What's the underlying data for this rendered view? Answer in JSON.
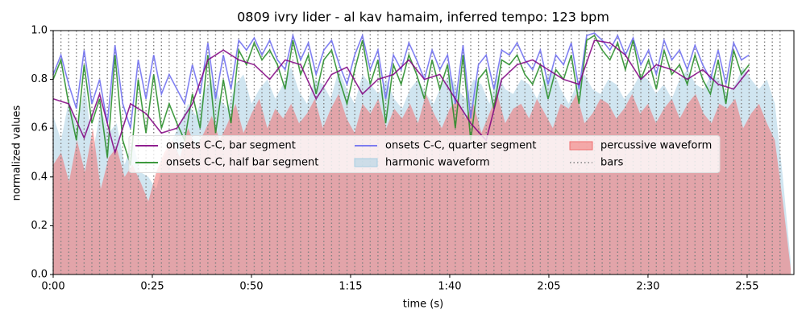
{
  "chart_data": {
    "type": "line",
    "title": "0809 ivry lider - al kav hamaim, inferred tempo: 123 bpm",
    "xlabel": "time (s)",
    "ylabel": "normalized values",
    "xlim": [
      0,
      186.8
    ],
    "ylim": [
      0,
      1
    ],
    "xticks": [
      {
        "value": 0,
        "label": "0:00"
      },
      {
        "value": 25,
        "label": "0:25"
      },
      {
        "value": 50,
        "label": "0:50"
      },
      {
        "value": 75,
        "label": "1:15"
      },
      {
        "value": 100,
        "label": "1:40"
      },
      {
        "value": 125,
        "label": "2:05"
      },
      {
        "value": 150,
        "label": "2:30"
      },
      {
        "value": 175,
        "label": "2:55"
      }
    ],
    "yticks": [
      {
        "value": 0,
        "label": "0.0"
      },
      0.2,
      0.4,
      0.6,
      0.8,
      {
        "value": 1,
        "label": "1.0"
      }
    ],
    "legend": "center",
    "legend_columns": 3,
    "series": [
      {
        "name": "onsets C-C, bar segment",
        "kind": "line",
        "color": "#800080",
        "x": [
          0,
          3.9,
          7.8,
          11.7,
          15.6,
          19.5,
          23.4,
          27.3,
          31.2,
          35.1,
          39,
          42.9,
          46.8,
          50.7,
          54.6,
          58.5,
          62.4,
          66.3,
          70.2,
          74.1,
          78,
          81.9,
          85.8,
          89.7,
          93.6,
          97.5,
          101.4,
          105.3,
          109.2,
          113.1,
          117,
          120.9,
          124.8,
          128.7,
          132.6,
          136.5,
          140.4,
          144.3,
          148.2,
          152.1,
          156,
          159.9,
          163.8,
          167.7,
          171.6,
          175.5
        ],
        "values": [
          0.72,
          0.7,
          0.56,
          0.74,
          0.5,
          0.7,
          0.66,
          0.58,
          0.6,
          0.7,
          0.88,
          0.92,
          0.88,
          0.86,
          0.8,
          0.88,
          0.86,
          0.72,
          0.82,
          0.85,
          0.74,
          0.8,
          0.82,
          0.88,
          0.8,
          0.82,
          0.72,
          0.62,
          0.55,
          0.8,
          0.86,
          0.88,
          0.84,
          0.8,
          0.78,
          0.96,
          0.95,
          0.9,
          0.8,
          0.86,
          0.84,
          0.8,
          0.84,
          0.78,
          0.76,
          0.84
        ]
      },
      {
        "name": "onsets C-C, half bar segment",
        "kind": "line",
        "color": "#228b22",
        "x": [
          0,
          1.95,
          3.9,
          5.85,
          7.8,
          9.75,
          11.7,
          13.65,
          15.6,
          17.55,
          19.5,
          21.45,
          23.4,
          25.35,
          27.3,
          29.25,
          31.2,
          33.15,
          35.1,
          37.05,
          39,
          40.95,
          42.9,
          44.85,
          46.8,
          48.75,
          50.7,
          52.65,
          54.6,
          56.55,
          58.5,
          60.45,
          62.4,
          64.35,
          66.3,
          68.25,
          70.2,
          72.15,
          74.1,
          76.05,
          78,
          79.95,
          81.9,
          83.85,
          85.8,
          87.75,
          89.7,
          91.65,
          93.6,
          95.55,
          97.5,
          99.45,
          101.4,
          103.35,
          105.3,
          107.25,
          109.2,
          111.15,
          113.1,
          115.05,
          117,
          118.95,
          120.9,
          122.85,
          124.8,
          126.75,
          128.7,
          130.65,
          132.6,
          134.55,
          136.5,
          138.45,
          140.4,
          142.35,
          144.3,
          146.25,
          148.2,
          150.15,
          152.1,
          154.05,
          156,
          157.95,
          159.9,
          161.85,
          163.8,
          165.75,
          167.7,
          169.65,
          171.6,
          173.55,
          175.5
        ],
        "values": [
          0.8,
          0.88,
          0.7,
          0.55,
          0.86,
          0.62,
          0.72,
          0.48,
          0.9,
          0.55,
          0.45,
          0.8,
          0.58,
          0.82,
          0.6,
          0.7,
          0.62,
          0.55,
          0.74,
          0.6,
          0.9,
          0.58,
          0.8,
          0.62,
          0.92,
          0.86,
          0.95,
          0.88,
          0.92,
          0.86,
          0.76,
          0.96,
          0.82,
          0.9,
          0.74,
          0.88,
          0.92,
          0.8,
          0.7,
          0.84,
          0.96,
          0.78,
          0.88,
          0.62,
          0.86,
          0.78,
          0.9,
          0.82,
          0.72,
          0.88,
          0.76,
          0.86,
          0.6,
          0.9,
          0.55,
          0.8,
          0.84,
          0.68,
          0.88,
          0.86,
          0.9,
          0.82,
          0.78,
          0.86,
          0.72,
          0.84,
          0.8,
          0.9,
          0.7,
          0.96,
          0.98,
          0.92,
          0.88,
          0.95,
          0.84,
          0.96,
          0.8,
          0.88,
          0.76,
          0.92,
          0.82,
          0.86,
          0.78,
          0.9,
          0.8,
          0.74,
          0.88,
          0.7,
          0.92,
          0.82,
          0.86
        ]
      },
      {
        "name": "onsets C-C, quarter segment",
        "kind": "line",
        "color": "#6b6bf0",
        "x": [
          0,
          1.95,
          3.9,
          5.85,
          7.8,
          9.75,
          11.7,
          13.65,
          15.6,
          17.55,
          19.5,
          21.45,
          23.4,
          25.35,
          27.3,
          29.25,
          31.2,
          33.15,
          35.1,
          37.05,
          39,
          40.95,
          42.9,
          44.85,
          46.8,
          48.75,
          50.7,
          52.65,
          54.6,
          56.55,
          58.5,
          60.45,
          62.4,
          64.35,
          66.3,
          68.25,
          70.2,
          72.15,
          74.1,
          76.05,
          78,
          79.95,
          81.9,
          83.85,
          85.8,
          87.75,
          89.7,
          91.65,
          93.6,
          95.55,
          97.5,
          99.45,
          101.4,
          103.35,
          105.3,
          107.25,
          109.2,
          111.15,
          113.1,
          115.05,
          117,
          118.95,
          120.9,
          122.85,
          124.8,
          126.75,
          128.7,
          130.65,
          132.6,
          134.55,
          136.5,
          138.45,
          140.4,
          142.35,
          144.3,
          146.25,
          148.2,
          150.15,
          152.1,
          154.05,
          156,
          157.95,
          159.9,
          161.85,
          163.8,
          165.75,
          167.7,
          169.65,
          171.6,
          173.55,
          175.5
        ],
        "values": [
          0.82,
          0.9,
          0.78,
          0.68,
          0.92,
          0.7,
          0.8,
          0.62,
          0.94,
          0.7,
          0.6,
          0.88,
          0.72,
          0.9,
          0.74,
          0.82,
          0.76,
          0.7,
          0.86,
          0.74,
          0.95,
          0.72,
          0.9,
          0.76,
          0.96,
          0.92,
          0.97,
          0.9,
          0.96,
          0.88,
          0.84,
          0.98,
          0.88,
          0.95,
          0.82,
          0.92,
          0.96,
          0.86,
          0.78,
          0.9,
          0.98,
          0.84,
          0.92,
          0.72,
          0.9,
          0.84,
          0.95,
          0.88,
          0.8,
          0.92,
          0.84,
          0.9,
          0.7,
          0.94,
          0.64,
          0.86,
          0.9,
          0.76,
          0.92,
          0.9,
          0.95,
          0.88,
          0.84,
          0.92,
          0.78,
          0.9,
          0.86,
          0.95,
          0.76,
          0.98,
          0.99,
          0.96,
          0.92,
          0.98,
          0.9,
          0.97,
          0.86,
          0.92,
          0.82,
          0.96,
          0.88,
          0.92,
          0.84,
          0.94,
          0.86,
          0.8,
          0.92,
          0.78,
          0.95,
          0.88,
          0.9
        ]
      },
      {
        "name": "harmonic waveform",
        "kind": "area",
        "color": "#a9cfe3",
        "x": [
          0,
          2,
          4,
          6,
          8,
          10,
          12,
          14,
          16,
          18,
          20,
          22,
          24,
          26,
          28,
          30,
          32,
          34,
          36,
          38,
          40,
          42,
          44,
          46,
          48,
          50,
          52,
          54,
          56,
          58,
          60,
          62,
          64,
          66,
          68,
          70,
          72,
          74,
          76,
          78,
          80,
          82,
          84,
          86,
          88,
          90,
          92,
          94,
          96,
          98,
          100,
          102,
          104,
          106,
          108,
          110,
          112,
          114,
          116,
          118,
          120,
          122,
          124,
          126,
          128,
          130,
          132,
          134,
          136,
          138,
          140,
          142,
          144,
          146,
          148,
          150,
          152,
          154,
          156,
          158,
          160,
          162,
          164,
          166,
          168,
          170,
          172,
          174,
          176,
          178,
          180,
          182,
          184,
          186
        ],
        "values": [
          0.65,
          0.55,
          0.72,
          0.6,
          0.78,
          0.5,
          0.68,
          0.58,
          0.62,
          0.45,
          0.55,
          0.42,
          0.4,
          0.35,
          0.48,
          0.55,
          0.62,
          0.7,
          0.65,
          0.75,
          0.8,
          0.72,
          0.68,
          0.78,
          0.82,
          0.7,
          0.76,
          0.8,
          0.72,
          0.78,
          0.85,
          0.75,
          0.7,
          0.8,
          0.78,
          0.72,
          0.84,
          0.76,
          0.7,
          0.82,
          0.78,
          0.74,
          0.8,
          0.72,
          0.68,
          0.76,
          0.8,
          0.74,
          0.7,
          0.78,
          0.82,
          0.76,
          0.72,
          0.8,
          0.78,
          0.7,
          0.82,
          0.76,
          0.74,
          0.8,
          0.78,
          0.72,
          0.8,
          0.84,
          0.76,
          0.7,
          0.78,
          0.82,
          0.76,
          0.74,
          0.8,
          0.78,
          0.72,
          0.76,
          0.82,
          0.8,
          0.74,
          0.78,
          0.72,
          0.8,
          0.84,
          0.78,
          0.76,
          0.82,
          0.8,
          0.74,
          0.78,
          0.85,
          0.8,
          0.76,
          0.8,
          0.7,
          0.4,
          0.05
        ]
      },
      {
        "name": "percussive waveform",
        "kind": "area",
        "color": "#f07070",
        "x": [
          0,
          2,
          4,
          6,
          8,
          10,
          12,
          14,
          16,
          18,
          20,
          22,
          24,
          26,
          28,
          30,
          32,
          34,
          36,
          38,
          40,
          42,
          44,
          46,
          48,
          50,
          52,
          54,
          56,
          58,
          60,
          62,
          64,
          66,
          68,
          70,
          72,
          74,
          76,
          78,
          80,
          82,
          84,
          86,
          88,
          90,
          92,
          94,
          96,
          98,
          100,
          102,
          104,
          106,
          108,
          110,
          112,
          114,
          116,
          118,
          120,
          122,
          124,
          126,
          128,
          130,
          132,
          134,
          136,
          138,
          140,
          142,
          144,
          146,
          148,
          150,
          152,
          154,
          156,
          158,
          160,
          162,
          164,
          166,
          168,
          170,
          172,
          174,
          176,
          178,
          180,
          182,
          184,
          186
        ],
        "values": [
          0.45,
          0.5,
          0.38,
          0.55,
          0.42,
          0.6,
          0.35,
          0.48,
          0.52,
          0.4,
          0.45,
          0.38,
          0.3,
          0.42,
          0.5,
          0.55,
          0.48,
          0.6,
          0.52,
          0.58,
          0.65,
          0.55,
          0.62,
          0.7,
          0.58,
          0.66,
          0.72,
          0.6,
          0.68,
          0.64,
          0.7,
          0.62,
          0.66,
          0.72,
          0.6,
          0.68,
          0.74,
          0.64,
          0.58,
          0.7,
          0.66,
          0.72,
          0.6,
          0.68,
          0.64,
          0.7,
          0.62,
          0.74,
          0.66,
          0.6,
          0.68,
          0.72,
          0.64,
          0.7,
          0.58,
          0.66,
          0.74,
          0.62,
          0.68,
          0.7,
          0.64,
          0.72,
          0.66,
          0.6,
          0.7,
          0.68,
          0.74,
          0.62,
          0.66,
          0.72,
          0.7,
          0.64,
          0.68,
          0.74,
          0.66,
          0.7,
          0.62,
          0.68,
          0.72,
          0.64,
          0.7,
          0.74,
          0.66,
          0.62,
          0.7,
          0.68,
          0.72,
          0.6,
          0.66,
          0.7,
          0.62,
          0.55,
          0.3,
          0.02
        ]
      },
      {
        "name": "bars",
        "kind": "vlines",
        "color": "#808080",
        "x": [
          0,
          1.95,
          3.9,
          5.85,
          7.8,
          9.75,
          11.7,
          13.65,
          15.6,
          17.55,
          19.5,
          21.45,
          23.4,
          25.35,
          27.3,
          29.25,
          31.2,
          33.15,
          35.1,
          37.05,
          39,
          40.95,
          42.9,
          44.85,
          46.8,
          48.75,
          50.7,
          52.65,
          54.6,
          56.55,
          58.5,
          60.45,
          62.4,
          64.35,
          66.3,
          68.25,
          70.2,
          72.15,
          74.1,
          76.05,
          78,
          79.95,
          81.9,
          83.85,
          85.8,
          87.75,
          89.7,
          91.65,
          93.6,
          95.55,
          97.5,
          99.45,
          101.4,
          103.35,
          105.3,
          107.25,
          109.2,
          111.15,
          113.1,
          115.05,
          117,
          118.95,
          120.9,
          122.85,
          124.8,
          126.75,
          128.7,
          130.65,
          132.6,
          134.55,
          136.5,
          138.45,
          140.4,
          142.35,
          144.3,
          146.25,
          148.2,
          150.15,
          152.1,
          154.05,
          156,
          157.95,
          159.9,
          161.85,
          163.8,
          165.75,
          167.7,
          169.65,
          171.6,
          173.55,
          175.5,
          177.45,
          179.4,
          181.35,
          183.3
        ]
      }
    ]
  }
}
